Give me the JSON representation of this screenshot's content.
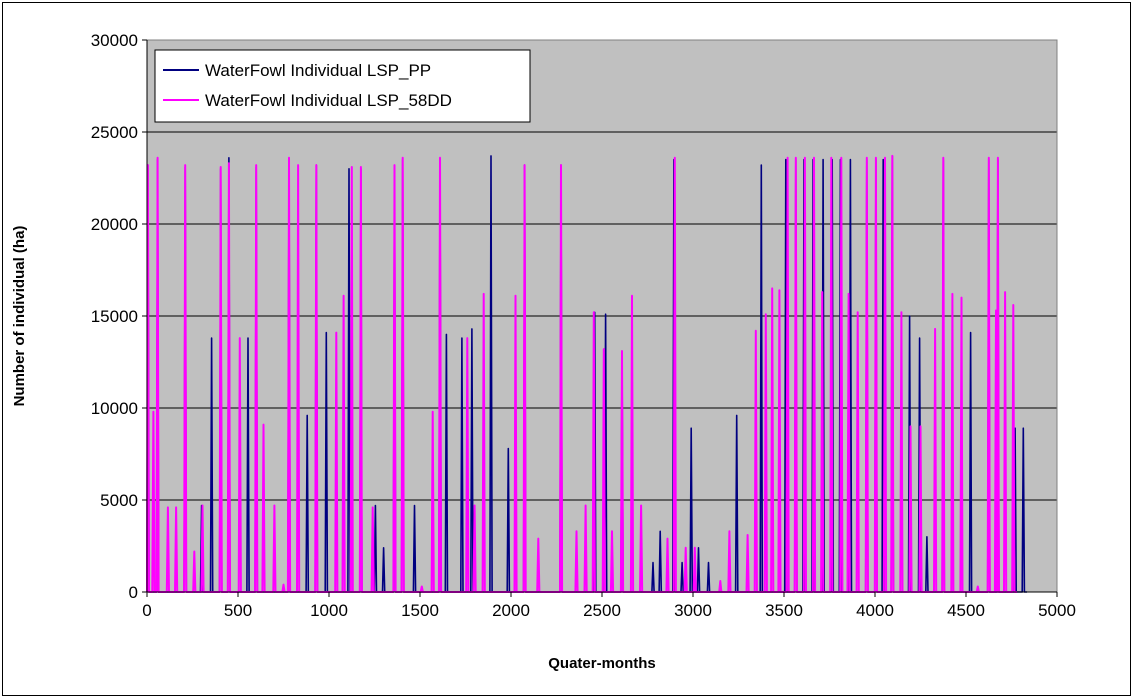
{
  "chart_data": {
    "type": "line",
    "title": "",
    "xlabel": "Quater-months",
    "ylabel": "Number of individual (ha)",
    "xlim": [
      0,
      5000
    ],
    "ylim": [
      0,
      30000
    ],
    "x_ticks": [
      0,
      500,
      1000,
      1500,
      2000,
      2500,
      3000,
      3500,
      4000,
      4500,
      5000
    ],
    "y_ticks": [
      0,
      5000,
      10000,
      15000,
      20000,
      25000,
      30000
    ],
    "x_tick_labels": [
      "0",
      "500",
      "1000",
      "1500",
      "2000",
      "2500",
      "3000",
      "3500",
      "4000",
      "4500",
      "5000"
    ],
    "y_tick_labels": [
      "0",
      "5000",
      "10000",
      "15000",
      "20000",
      "25000",
      "30000"
    ],
    "grid": "horizontal",
    "plot_background": "#c0c0c0",
    "legend_position": "top-left",
    "series": [
      {
        "name": "WaterFowl Individual LSP_PP",
        "color": "#000080",
        "peaks": [
          [
            5,
            23200
          ],
          [
            58,
            23500
          ],
          [
            210,
            23100
          ],
          [
            300,
            4700
          ],
          [
            355,
            13800
          ],
          [
            405,
            23000
          ],
          [
            450,
            23600
          ],
          [
            555,
            13800
          ],
          [
            600,
            23100
          ],
          [
            780,
            23500
          ],
          [
            880,
            9600
          ],
          [
            930,
            23200
          ],
          [
            985,
            14100
          ],
          [
            1110,
            23000
          ],
          [
            1175,
            23000
          ],
          [
            1255,
            4700
          ],
          [
            1300,
            2400
          ],
          [
            1360,
            23100
          ],
          [
            1405,
            23500
          ],
          [
            1470,
            4700
          ],
          [
            1610,
            23500
          ],
          [
            1645,
            14000
          ],
          [
            1730,
            13800
          ],
          [
            1785,
            14300
          ],
          [
            1890,
            23700
          ],
          [
            1985,
            7800
          ],
          [
            2075,
            23200
          ],
          [
            2275,
            23200
          ],
          [
            2460,
            15200
          ],
          [
            2520,
            15100
          ],
          [
            2610,
            13000
          ],
          [
            2780,
            1600
          ],
          [
            2820,
            3300
          ],
          [
            2895,
            23500
          ],
          [
            2940,
            1600
          ],
          [
            2990,
            8900
          ],
          [
            3030,
            2400
          ],
          [
            3085,
            1600
          ],
          [
            3240,
            9600
          ],
          [
            3375,
            23200
          ],
          [
            3510,
            23500
          ],
          [
            3565,
            23500
          ],
          [
            3610,
            23500
          ],
          [
            3660,
            23500
          ],
          [
            3715,
            23500
          ],
          [
            3765,
            23500
          ],
          [
            3810,
            23500
          ],
          [
            3865,
            23500
          ],
          [
            3955,
            23500
          ],
          [
            4005,
            23500
          ],
          [
            4045,
            23500
          ],
          [
            4095,
            23700
          ],
          [
            4190,
            15000
          ],
          [
            4245,
            13800
          ],
          [
            4285,
            3000
          ],
          [
            4375,
            23500
          ],
          [
            4525,
            14100
          ],
          [
            4625,
            23500
          ],
          [
            4675,
            23500
          ],
          [
            4770,
            8900
          ],
          [
            4815,
            8900
          ]
        ]
      },
      {
        "name": "WaterFowl Individual LSP_58DD",
        "color": "#ff00ff",
        "peaks": [
          [
            5,
            23200
          ],
          [
            35,
            9800
          ],
          [
            58,
            23600
          ],
          [
            115,
            4600
          ],
          [
            160,
            4600
          ],
          [
            210,
            23200
          ],
          [
            260,
            2200
          ],
          [
            305,
            4700
          ],
          [
            405,
            23100
          ],
          [
            450,
            23300
          ],
          [
            510,
            13800
          ],
          [
            600,
            23200
          ],
          [
            640,
            9100
          ],
          [
            700,
            4700
          ],
          [
            750,
            400
          ],
          [
            780,
            23600
          ],
          [
            830,
            23200
          ],
          [
            930,
            23200
          ],
          [
            1040,
            14100
          ],
          [
            1080,
            16100
          ],
          [
            1125,
            23100
          ],
          [
            1175,
            23100
          ],
          [
            1240,
            4600
          ],
          [
            1360,
            23200
          ],
          [
            1405,
            23600
          ],
          [
            1510,
            300
          ],
          [
            1570,
            9800
          ],
          [
            1610,
            23600
          ],
          [
            1760,
            13800
          ],
          [
            1800,
            4700
          ],
          [
            1850,
            16200
          ],
          [
            2025,
            16100
          ],
          [
            2075,
            23200
          ],
          [
            2150,
            2900
          ],
          [
            2275,
            23200
          ],
          [
            2360,
            3300
          ],
          [
            2410,
            4700
          ],
          [
            2455,
            15200
          ],
          [
            2510,
            13200
          ],
          [
            2555,
            3300
          ],
          [
            2610,
            13100
          ],
          [
            2665,
            16100
          ],
          [
            2715,
            4700
          ],
          [
            2860,
            2900
          ],
          [
            2900,
            23600
          ],
          [
            2960,
            2400
          ],
          [
            3010,
            2400
          ],
          [
            3150,
            600
          ],
          [
            3200,
            3300
          ],
          [
            3300,
            3100
          ],
          [
            3345,
            14200
          ],
          [
            3400,
            15100
          ],
          [
            3435,
            16500
          ],
          [
            3475,
            16400
          ],
          [
            3520,
            23600
          ],
          [
            3565,
            23600
          ],
          [
            3615,
            23600
          ],
          [
            3665,
            23600
          ],
          [
            3710,
            16300
          ],
          [
            3760,
            23600
          ],
          [
            3815,
            23600
          ],
          [
            3855,
            16200
          ],
          [
            3905,
            15200
          ],
          [
            3955,
            23600
          ],
          [
            4005,
            23600
          ],
          [
            4055,
            23600
          ],
          [
            4095,
            23700
          ],
          [
            4145,
            15200
          ],
          [
            4195,
            9000
          ],
          [
            4250,
            9000
          ],
          [
            4330,
            14300
          ],
          [
            4375,
            23600
          ],
          [
            4425,
            16200
          ],
          [
            4475,
            16000
          ],
          [
            4565,
            300
          ],
          [
            4625,
            23600
          ],
          [
            4665,
            15300
          ],
          [
            4675,
            23600
          ],
          [
            4715,
            16300
          ],
          [
            4760,
            15600
          ]
        ]
      }
    ]
  }
}
